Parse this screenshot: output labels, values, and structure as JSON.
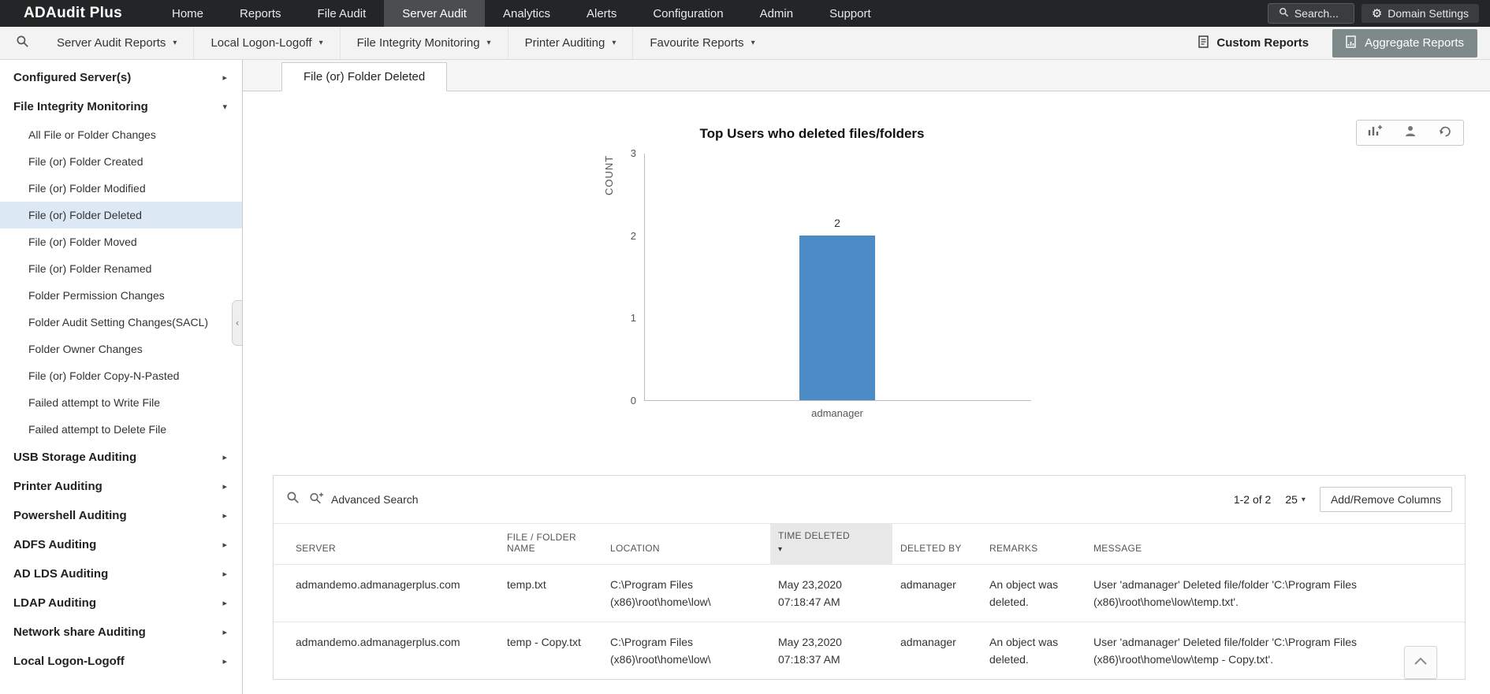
{
  "app": {
    "title": "ADAudit Plus"
  },
  "topnav": {
    "items": [
      "Home",
      "Reports",
      "File Audit",
      "Server Audit",
      "Analytics",
      "Alerts",
      "Configuration",
      "Admin",
      "Support"
    ],
    "active_item": "Server Audit",
    "search_label": "Search...",
    "domain_settings_label": "Domain Settings"
  },
  "toolbar": {
    "dropdowns": [
      "Server Audit Reports",
      "Local Logon-Logoff",
      "File Integrity Monitoring",
      "Printer Auditing",
      "Favourite Reports"
    ],
    "custom_reports_label": "Custom Reports",
    "aggregate_reports_label": "Aggregate Reports"
  },
  "sidebar": {
    "top_section": "Configured Server(s)",
    "expanded_section": "File Integrity Monitoring",
    "expanded_children": [
      "All File or Folder Changes",
      "File (or) Folder Created",
      "File (or) Folder Modified",
      "File (or) Folder Deleted",
      "File (or) Folder Moved",
      "File (or) Folder Renamed",
      "Folder Permission Changes",
      "Folder Audit Setting Changes(SACL)",
      "Folder Owner Changes",
      "File (or) Folder Copy-N-Pasted",
      "Failed attempt to Write File",
      "Failed attempt to Delete File"
    ],
    "selected_child": "File (or) Folder Deleted",
    "bottom_sections": [
      "USB Storage Auditing",
      "Printer Auditing",
      "Powershell Auditing",
      "ADFS Auditing",
      "AD LDS Auditing",
      "LDAP Auditing",
      "Network share Auditing",
      "Local Logon-Logoff"
    ]
  },
  "main": {
    "tab": "File (or) Folder Deleted",
    "chart_title": "Top Users who deleted files/folders"
  },
  "chart_data": {
    "type": "bar",
    "title": "Top Users who deleted files/folders",
    "categories": [
      "admanager"
    ],
    "values": [
      2
    ],
    "xlabel": "",
    "ylabel": "COUNT",
    "yticks": [
      0,
      1,
      2,
      3
    ],
    "ylim": [
      0,
      3
    ],
    "grid": false,
    "legend": false,
    "bar_color": "#4d8bc7"
  },
  "table": {
    "advanced_search_label": "Advanced Search",
    "pagination": "1-2 of 2",
    "page_size": "25",
    "add_remove_columns_label": "Add/Remove Columns",
    "columns": [
      "SERVER",
      "FILE / FOLDER NAME",
      "LOCATION",
      "TIME DELETED",
      "DELETED BY",
      "REMARKS",
      "MESSAGE"
    ],
    "sorted_column": "TIME DELETED",
    "sort_direction": "descending",
    "rows": [
      {
        "server": "admandemo.admanagerplus.com",
        "file": "temp.txt",
        "location": "C:\\Program Files (x86)\\root\\home\\low\\",
        "time": "May 23,2020 07:18:47 AM",
        "deleted_by": "admanager",
        "remarks": "An object was deleted.",
        "message": "User 'admanager' Deleted file/folder 'C:\\Program Files (x86)\\root\\home\\low\\temp.txt'."
      },
      {
        "server": "admandemo.admanagerplus.com",
        "file": "temp - Copy.txt",
        "location": "C:\\Program Files (x86)\\root\\home\\low\\",
        "time": "May 23,2020 07:18:37 AM",
        "deleted_by": "admanager",
        "remarks": "An object was deleted.",
        "message": "User 'admanager' Deleted file/folder 'C:\\Program Files (x86)\\root\\home\\low\\temp - Copy.txt'."
      }
    ]
  },
  "icons": {
    "topnav_search": "search-icon",
    "domain_settings": "gear-icon",
    "toolbar_search": "search-icon",
    "dropdown_caret": "chevron-down-icon",
    "custom_reports": "report-icon",
    "aggregate_reports": "aggregate-reports-icon",
    "chart_tools": [
      "bar-chart-add-icon",
      "user-icon",
      "export-icon"
    ],
    "table_search": "search-icon",
    "advanced_search": "advanced-search-icon",
    "sort": "sort-descending-icon",
    "scroll_top": "chevron-up-icon",
    "sidebar_collapsed": "chevron-right-icon",
    "sidebar_expanded": "chevron-down-icon"
  },
  "colors": {
    "topnav_bg": "#232526",
    "active_nav_bg": "#4a4e50",
    "bar_fill": "#4d8bc7",
    "selected_sidebar_bg": "#dce8f3",
    "aggregate_button_bg": "#7d8a89",
    "sorted_header_bg": "#e8e8e8"
  }
}
